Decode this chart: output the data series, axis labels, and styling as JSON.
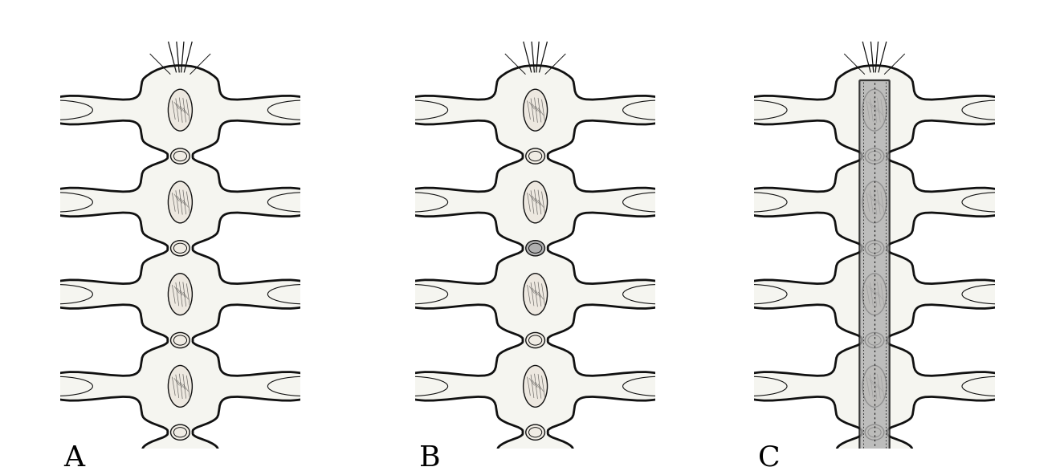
{
  "background_color": "#ffffff",
  "label_A": "A",
  "label_B": "B",
  "label_C": "C",
  "label_fontsize": 26,
  "figsize": [
    13.2,
    5.82
  ],
  "dpi": 100,
  "spine_color": "#111111",
  "shading_color": "#b0b0b0",
  "lw_main": 2.0,
  "lw_inner": 1.0
}
